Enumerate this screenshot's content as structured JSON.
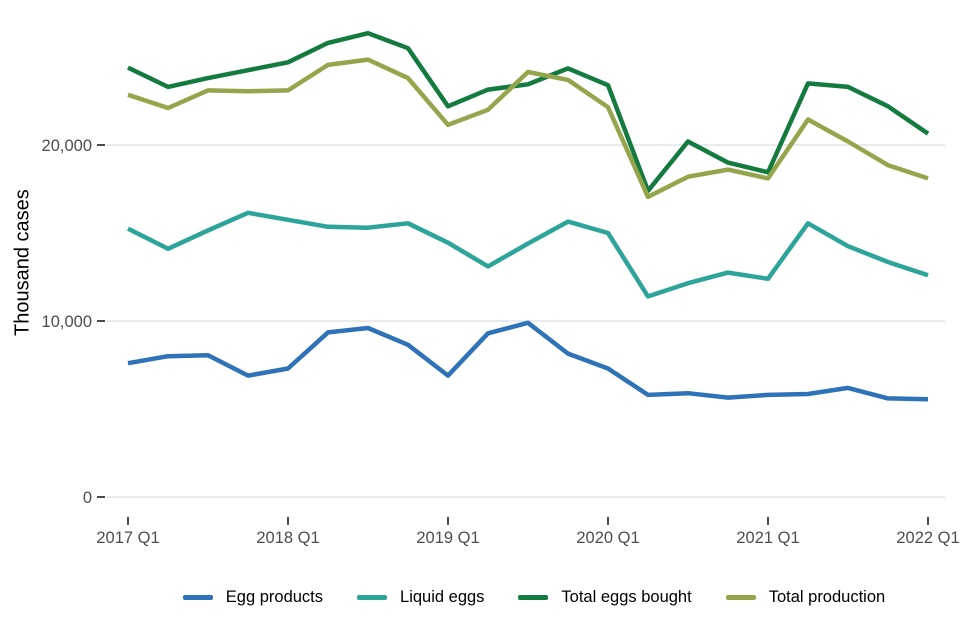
{
  "chart_data": {
    "type": "line",
    "title": "",
    "xlabel": "",
    "ylabel": "Thousand cases",
    "grid": true,
    "legend_position": "bottom",
    "ylim": [
      0,
      27000
    ],
    "categories": [
      "2017 Q1",
      "2017 Q2",
      "2017 Q3",
      "2017 Q4",
      "2018 Q1",
      "2018 Q2",
      "2018 Q3",
      "2018 Q4",
      "2019 Q1",
      "2019 Q2",
      "2019 Q3",
      "2019 Q4",
      "2020 Q1",
      "2020 Q2",
      "2020 Q3",
      "2020 Q4",
      "2021 Q1",
      "2021 Q2",
      "2021 Q3",
      "2021 Q4",
      "2022 Q1"
    ],
    "series": [
      {
        "name": "Egg products",
        "color": "#2E73B8",
        "values": [
          7600,
          8000,
          8050,
          6900,
          7300,
          9350,
          9600,
          8650,
          6900,
          9300,
          9900,
          8150,
          7300,
          5800,
          5900,
          5650,
          5800,
          5850,
          6200,
          5600,
          5550
        ]
      },
      {
        "name": "Liquid eggs",
        "color": "#2CA49A",
        "values": [
          15250,
          14100,
          15150,
          16150,
          15750,
          15350,
          15300,
          15550,
          14450,
          13100,
          14400,
          15650,
          15000,
          11400,
          12150,
          12750,
          12400,
          15550,
          14250,
          13350,
          12600
        ]
      },
      {
        "name": "Total eggs bought",
        "color": "#147B40",
        "values": [
          24400,
          23300,
          23800,
          24250,
          24700,
          25800,
          26350,
          25500,
          22200,
          23150,
          23450,
          24350,
          23400,
          17400,
          20200,
          19000,
          18450,
          23500,
          23300,
          22200,
          20650
        ]
      },
      {
        "name": "Total production",
        "color": "#95A54C",
        "values": [
          22850,
          22100,
          23100,
          23050,
          23100,
          24550,
          24850,
          23800,
          21150,
          22000,
          24150,
          23700,
          22150,
          17050,
          18200,
          18600,
          18100,
          21450,
          20200,
          18850,
          18100
        ]
      }
    ],
    "yticks": [
      {
        "value": 0,
        "label": "0"
      },
      {
        "value": 10000,
        "label": "10,000"
      },
      {
        "value": 20000,
        "label": "20,000"
      }
    ],
    "xticks": [
      {
        "index": 0,
        "label": "2017 Q1"
      },
      {
        "index": 4,
        "label": "2018 Q1"
      },
      {
        "index": 8,
        "label": "2019 Q1"
      },
      {
        "index": 12,
        "label": "2020 Q1"
      },
      {
        "index": 16,
        "label": "2021 Q1"
      },
      {
        "index": 20,
        "label": "2022 Q1"
      }
    ]
  },
  "colors": {
    "grid": "#E4E4E4",
    "tick_mark": "#333333",
    "tick_label": "#4D4D4D",
    "axis_title": "#000000",
    "background": "#FFFFFF"
  }
}
